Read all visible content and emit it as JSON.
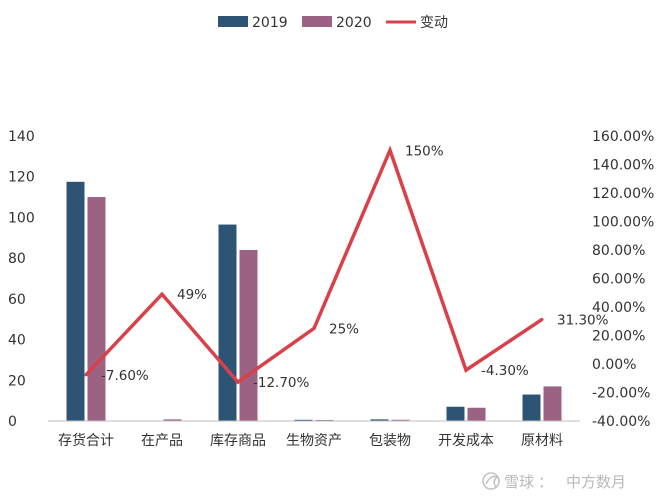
{
  "chart_data": {
    "type": "bar",
    "categories": [
      "存货合计",
      "在产品",
      "库存商品",
      "生物资产",
      "包装物",
      "开发成本",
      "原材料"
    ],
    "series": [
      {
        "name": "2019",
        "type": "bar",
        "axis": "left",
        "color": "#2e5475",
        "values": [
          117.5,
          0,
          96.5,
          0.6,
          0.8,
          7.0,
          13.0
        ]
      },
      {
        "name": "2020",
        "type": "bar",
        "axis": "left",
        "color": "#9b6283",
        "values": [
          110.0,
          0.8,
          84.0,
          0.5,
          0.6,
          6.5,
          17.0
        ]
      },
      {
        "name": "变动",
        "type": "line",
        "axis": "right",
        "color": "#d9414a",
        "values": [
          -7.6,
          49,
          -12.7,
          25,
          150,
          -4.3,
          31.3
        ],
        "labels": [
          "-7.60%",
          "49%",
          "-12.70%",
          "25%",
          "150%",
          "-4.30%",
          "31.30%"
        ]
      }
    ],
    "y_left": {
      "min": 0,
      "max": 140,
      "step": 20,
      "ticks": [
        "0",
        "20",
        "40",
        "60",
        "80",
        "100",
        "120",
        "140"
      ]
    },
    "y_right": {
      "min": -40,
      "max": 160,
      "step": 20,
      "ticks": [
        "-40.00%",
        "-20.00%",
        "0.00%",
        "20.00%",
        "40.00%",
        "60.00%",
        "80.00%",
        "100.00%",
        "120.00%",
        "140.00%",
        "160.00%"
      ]
    },
    "legend": {
      "position": "top",
      "items": [
        "2019",
        "2020",
        "变动"
      ]
    },
    "grid": false
  },
  "watermark": {
    "brand": "雪球",
    "separator": "：",
    "author": "中方数月"
  }
}
